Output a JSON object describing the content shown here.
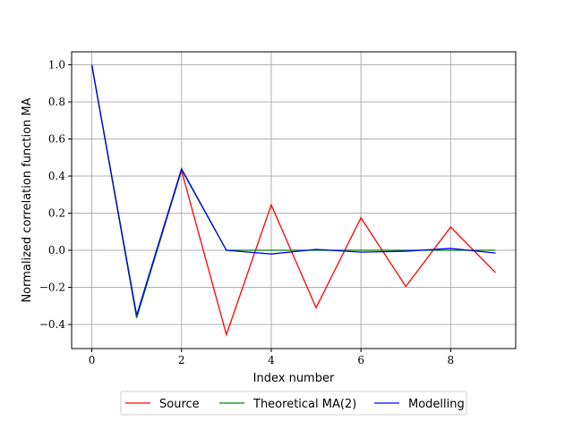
{
  "chart_data": {
    "type": "line",
    "title": "",
    "xlabel": "Index number",
    "ylabel": "Normalized correlation function MA",
    "xlim": [
      -0.45,
      9.45
    ],
    "ylim": [
      -0.53,
      1.07
    ],
    "xticks": [
      0,
      2,
      4,
      6,
      8
    ],
    "xtick_labels": [
      "0",
      "2",
      "4",
      "6",
      "8"
    ],
    "yticks": [
      -0.4,
      -0.2,
      0.0,
      0.2,
      0.4,
      0.6,
      0.8,
      1.0
    ],
    "ytick_labels": [
      "−0.4",
      "−0.2",
      "0.0",
      "0.2",
      "0.4",
      "0.6",
      "0.8",
      "1.0"
    ],
    "grid": true,
    "legend_position": "below plot, centered",
    "x": [
      0,
      1,
      2,
      3,
      4,
      5,
      6,
      7,
      8,
      9
    ],
    "series": [
      {
        "name": "Source",
        "color": "#ff0000",
        "values": [
          1.0,
          -0.36,
          0.43,
          -0.455,
          0.245,
          -0.31,
          0.175,
          -0.195,
          0.125,
          -0.12
        ]
      },
      {
        "name": "Theoretical MA(2)",
        "color": "#008000",
        "values": [
          1.0,
          -0.365,
          0.435,
          0.0,
          0.0,
          0.0,
          0.0,
          0.0,
          0.0,
          0.0
        ]
      },
      {
        "name": "Modelling",
        "color": "#0000ff",
        "values": [
          1.0,
          -0.35,
          0.44,
          0.0,
          -0.02,
          0.005,
          -0.01,
          -0.005,
          0.01,
          -0.015
        ]
      }
    ]
  }
}
